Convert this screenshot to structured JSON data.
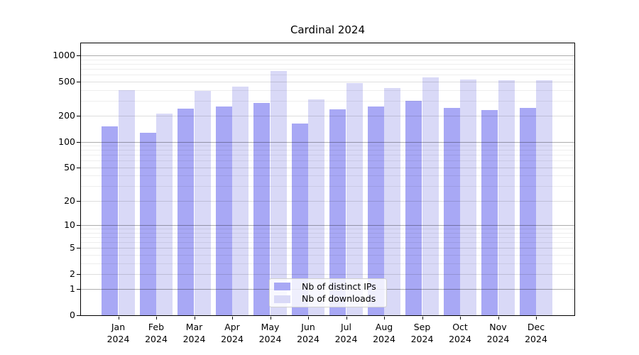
{
  "title": "Cardinal 2024",
  "chart_data": {
    "type": "bar",
    "title": "Cardinal 2024",
    "categories": [
      "Jan",
      "Feb",
      "Mar",
      "Apr",
      "May",
      "Jun",
      "Jul",
      "Aug",
      "Sep",
      "Oct",
      "Nov",
      "Dec"
    ],
    "category_year": "2024",
    "series": [
      {
        "name": "Nb of distinct IPs",
        "color": "#a8a8f5",
        "values": [
          151,
          127,
          242,
          257,
          283,
          163,
          238,
          259,
          301,
          249,
          234,
          248
        ]
      },
      {
        "name": "Nb of downloads",
        "color": "#d9d9f7",
        "values": [
          398,
          214,
          388,
          434,
          667,
          313,
          480,
          423,
          559,
          531,
          515,
          521
        ]
      }
    ],
    "y_scale": "log1p",
    "y_ticks": [
      1000,
      500,
      200,
      100,
      50,
      20,
      10,
      5,
      2,
      1,
      0
    ],
    "ylim": [
      0,
      1440
    ],
    "grid": true,
    "legend_position": "lower center"
  },
  "colors": {
    "grid_major": "rgba(0,0,0,0.32)",
    "grid_mid": "rgba(0,0,0,0.13)",
    "grid_minor": "rgba(0,0,0,0.065)",
    "axis": "#000000"
  }
}
